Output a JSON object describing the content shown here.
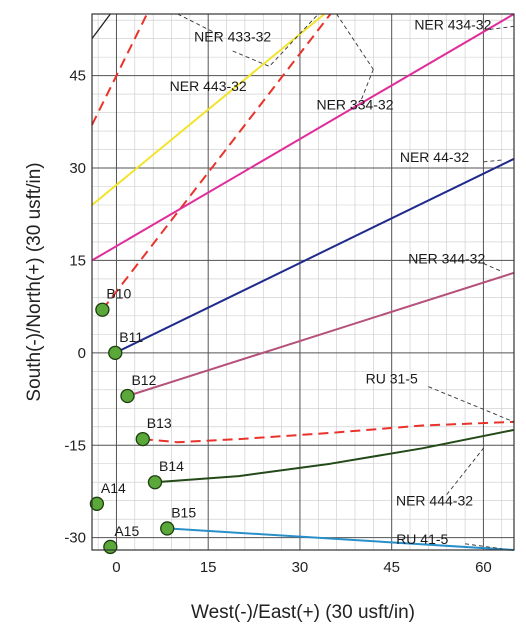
{
  "chart_data": {
    "type": "scatter",
    "xlabel": "West(-)/East(+) (30 usft/in)",
    "ylabel": "South(-)/North(+) (30 usft/in)",
    "xlim": [
      -4,
      65
    ],
    "ylim": [
      -32,
      55
    ],
    "xticks": [
      0,
      15,
      30,
      45,
      60
    ],
    "yticks": [
      -30,
      -15,
      0,
      15,
      30,
      45
    ],
    "grid": true,
    "wells": [
      {
        "label": "B10",
        "x": -2.3,
        "y": 7
      },
      {
        "label": "B11",
        "x": -0.2,
        "y": 0
      },
      {
        "label": "B12",
        "x": 1.8,
        "y": -7
      },
      {
        "label": "B13",
        "x": 4.3,
        "y": -14
      },
      {
        "label": "B14",
        "x": 6.3,
        "y": -21
      },
      {
        "label": "A14",
        "x": -3.2,
        "y": -24.5
      },
      {
        "label": "B15",
        "x": 8.3,
        "y": -28.5
      },
      {
        "label": "A15",
        "x": -1.0,
        "y": -31.5
      }
    ],
    "series": [
      {
        "name": "NER 433-32",
        "color": "#e8322a",
        "dashed": true,
        "points": [
          [
            -4,
            37
          ],
          [
            5,
            55
          ]
        ]
      },
      {
        "name": "NER 443-32",
        "color": "#f2e42a",
        "dashed": false,
        "points": [
          [
            -4,
            24
          ],
          [
            34,
            55
          ]
        ]
      },
      {
        "name": "",
        "color": "#e8322a",
        "dashed": true,
        "points": [
          [
            -2.3,
            7
          ],
          [
            35,
            55
          ]
        ]
      },
      {
        "name": "NER 434-32",
        "color": "#e02d9a",
        "dashed": false,
        "points": [
          [
            -4,
            15
          ],
          [
            65,
            55
          ]
        ]
      },
      {
        "name": "NER 44-32",
        "color": "#1f2a8c",
        "dashed": false,
        "points": [
          [
            -0.2,
            0
          ],
          [
            65,
            31.5
          ]
        ]
      },
      {
        "name": "NER 344-32",
        "color": "#b5517a",
        "dashed": false,
        "points": [
          [
            1.8,
            -7
          ],
          [
            65,
            13
          ]
        ]
      },
      {
        "name": "RU 31-5",
        "color": "#e8322a",
        "dashed": true,
        "points": [
          [
            4.3,
            -14
          ],
          [
            10,
            -14.5
          ],
          [
            20,
            -14
          ],
          [
            35,
            -13
          ],
          [
            50,
            -11.8
          ],
          [
            65,
            -11.2
          ]
        ]
      },
      {
        "name": "NER 444-32",
        "color": "#234a18",
        "dashed": false,
        "points": [
          [
            6.3,
            -21
          ],
          [
            20,
            -20
          ],
          [
            35,
            -18
          ],
          [
            50,
            -15.5
          ],
          [
            65,
            -12.5
          ]
        ]
      },
      {
        "name": "RU 41-5",
        "color": "#2a8fc9",
        "dashed": false,
        "points": [
          [
            8.3,
            -28.5
          ],
          [
            65,
            -32
          ]
        ]
      }
    ],
    "line_labels": [
      {
        "text": "NER 433-32",
        "x": 19,
        "y": 50.5
      },
      {
        "text": "NER 434-32",
        "x": 55,
        "y": 52.5
      },
      {
        "text": "NER 443-32",
        "x": 15,
        "y": 42.5
      },
      {
        "text": "NER 334-32",
        "x": 39,
        "y": 39.5
      },
      {
        "text": "NER 44-32",
        "x": 52,
        "y": 31
      },
      {
        "text": "NER 344-32",
        "x": 54,
        "y": 14.5
      },
      {
        "text": "RU 31-5",
        "x": 45,
        "y": -5
      },
      {
        "text": "NER 444-32",
        "x": 52,
        "y": -24.8
      },
      {
        "text": "RU 41-5",
        "x": 50,
        "y": -31
      }
    ]
  }
}
